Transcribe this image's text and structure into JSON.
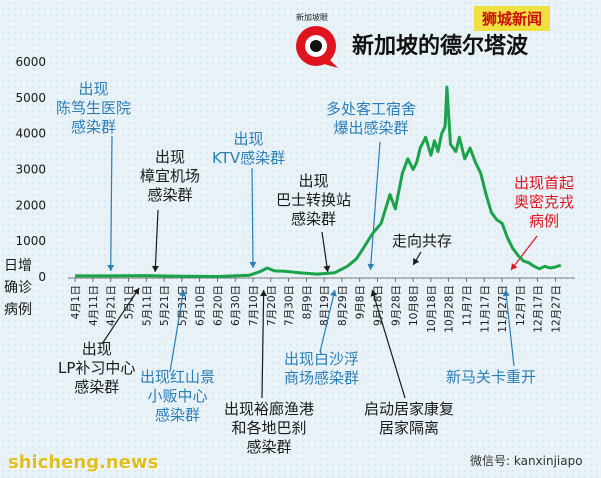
{
  "title": "新加坡的德尔塔波",
  "brand_small": "新加坡眼",
  "tag": "狮城新闻",
  "watermark_left": "shicheng.news",
  "watermark_right": "微信号: kanxinjiapo",
  "colors": {
    "line": "#1aa34a",
    "blue_text": "#2a7fb7",
    "dark_text": "#1a1a1a",
    "red_text": "#e0141e",
    "tag_bg": "#f0e040"
  },
  "chart_data": {
    "type": "line",
    "title": "新加坡的德尔塔波",
    "ylabel": "日增确诊病例",
    "ylim": [
      0,
      6000
    ],
    "yticks": [
      "0",
      "1000",
      "2000",
      "3000",
      "4000",
      "5000",
      "6000"
    ],
    "xlim": [
      "2021-03-28",
      "2022-01-07"
    ],
    "xticks": [
      "4月1日",
      "4月11日",
      "4月21日",
      "5月1日",
      "5月11日",
      "5月21日",
      "5月31日",
      "6月10日",
      "6月20日",
      "6月30日",
      "7月10日",
      "7月20日",
      "7月30日",
      "8月9日",
      "8月19日",
      "8月29日",
      "9月8日",
      "9月18日",
      "9月28日",
      "10月8日",
      "10月18日",
      "10月28日",
      "11月7日",
      "11月17日",
      "11月27日",
      "12月7日",
      "12月17日",
      "12月27日"
    ],
    "grid": false,
    "series": [
      {
        "x": [
          "2021-04-01",
          "2021-04-20",
          "2021-05-10",
          "2021-05-31",
          "2021-06-20",
          "2021-07-08",
          "2021-07-14",
          "2021-07-18",
          "2021-07-22",
          "2021-07-28",
          "2021-08-05",
          "2021-08-15",
          "2021-08-25",
          "2021-09-01",
          "2021-09-06",
          "2021-09-10",
          "2021-09-15",
          "2021-09-20",
          "2021-09-25",
          "2021-09-28",
          "2021-10-02",
          "2021-10-05",
          "2021-10-08",
          "2021-10-10",
          "2021-10-12",
          "2021-10-15",
          "2021-10-18",
          "2021-10-20",
          "2021-10-22",
          "2021-10-24",
          "2021-10-26",
          "2021-10-27",
          "2021-10-29",
          "2021-11-01",
          "2021-11-03",
          "2021-11-06",
          "2021-11-09",
          "2021-11-12",
          "2021-11-15",
          "2021-11-18",
          "2021-11-21",
          "2021-11-24",
          "2021-11-27",
          "2021-11-30",
          "2021-12-03",
          "2021-12-06",
          "2021-12-09",
          "2021-12-12",
          "2021-12-15",
          "2021-12-18",
          "2021-12-21",
          "2021-12-24",
          "2021-12-27",
          "2021-12-30"
        ],
        "y": [
          30,
          30,
          40,
          20,
          15,
          50,
          150,
          250,
          170,
          160,
          120,
          80,
          120,
          300,
          500,
          800,
          1200,
          1500,
          2300,
          1900,
          2900,
          3300,
          3000,
          3200,
          3600,
          3900,
          3400,
          3800,
          3500,
          4000,
          4200,
          5300,
          3700,
          3500,
          3900,
          3300,
          3600,
          3200,
          2900,
          2300,
          1800,
          1600,
          1500,
          1100,
          800,
          600,
          450,
          400,
          300,
          230,
          300,
          250,
          280,
          330
        ]
      }
    ],
    "annotations": [
      {
        "text": "出现\n陈笃生医院\n感染群",
        "color": "blue",
        "date": "2021-04-21"
      },
      {
        "text": "出现\n樟宜机场\n感染群",
        "color": "dark",
        "date": "2021-05-16"
      },
      {
        "text": "出现\nKTV感染群",
        "color": "blue",
        "date": "2021-07-10"
      },
      {
        "text": "出现\n巴士转换站\n感染群",
        "color": "dark",
        "date": "2021-08-21"
      },
      {
        "text": "多处客工宿舍\n爆出感染群",
        "color": "blue",
        "date": "2021-09-14"
      },
      {
        "text": "走向共存",
        "color": "dark",
        "date": "2021-10-08"
      },
      {
        "text": "出现首起\n奥密克戎\n病例",
        "color": "red",
        "date": "2021-12-02"
      },
      {
        "text": "出现\nLP补习中心\n感染群",
        "color": "dark",
        "date": "2021-05-07"
      },
      {
        "text": "出现红山景\n小贩中心\n感染群",
        "color": "blue",
        "date": "2021-06-01"
      },
      {
        "text": "出现裕廊渔港\n和各地巴刹\n感染群",
        "color": "dark",
        "date": "2021-07-16"
      },
      {
        "text": "出现白沙浮\n商场感染群",
        "color": "blue",
        "date": "2021-08-25"
      },
      {
        "text": "启动居家康复\n居家隔离",
        "color": "dark",
        "date": "2021-09-15"
      },
      {
        "text": "新马关卡重开",
        "color": "blue",
        "date": "2021-11-29"
      }
    ]
  }
}
